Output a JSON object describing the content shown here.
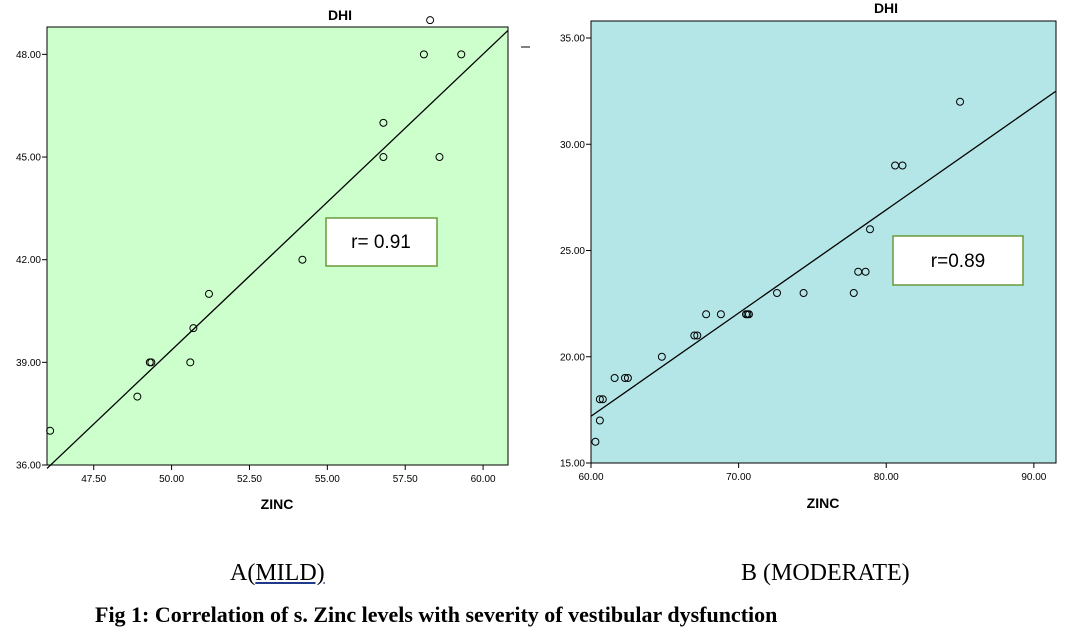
{
  "colors": {
    "panel_a_bg": "#ccffcc",
    "panel_b_bg": "#b4e6e8",
    "annotation_border": "#6a9a3a",
    "marker_stroke": "#000000"
  },
  "chart_data": [
    {
      "type": "scatter",
      "title": "DHI",
      "xlabel": "ZINC",
      "ylabel": "",
      "xlim": [
        46.0,
        60.8
      ],
      "ylim": [
        36.0,
        48.8
      ],
      "xticks": [
        "47.50",
        "50.00",
        "52.50",
        "55.00",
        "57.50",
        "60.00"
      ],
      "xtick_values": [
        47.5,
        50.0,
        52.5,
        55.0,
        57.5,
        60.0
      ],
      "yticks": [
        "36.00",
        "39.00",
        "42.00",
        "45.00",
        "48.00"
      ],
      "ytick_values": [
        36.0,
        39.0,
        42.0,
        45.0,
        48.0
      ],
      "grid": false,
      "marker": "open-circle",
      "points": [
        {
          "x": 46.1,
          "y": 37.0
        },
        {
          "x": 48.9,
          "y": 38.0
        },
        {
          "x": 49.3,
          "y": 39.0
        },
        {
          "x": 49.35,
          "y": 39.0
        },
        {
          "x": 50.6,
          "y": 39.0
        },
        {
          "x": 50.7,
          "y": 40.0
        },
        {
          "x": 51.2,
          "y": 41.0
        },
        {
          "x": 54.2,
          "y": 42.0
        },
        {
          "x": 56.8,
          "y": 45.0
        },
        {
          "x": 56.8,
          "y": 46.0
        },
        {
          "x": 58.1,
          "y": 48.0
        },
        {
          "x": 58.3,
          "y": 49.0
        },
        {
          "x": 58.6,
          "y": 45.0
        },
        {
          "x": 59.3,
          "y": 48.0
        }
      ],
      "fit_line": {
        "x": [
          46.0,
          60.8
        ],
        "y": [
          35.9,
          48.7
        ]
      },
      "annotation": "r= 0.91"
    },
    {
      "type": "scatter",
      "title": "DHI",
      "xlabel": "ZINC",
      "ylabel": "",
      "xlim": [
        60.0,
        91.5
      ],
      "ylim": [
        15.0,
        35.8
      ],
      "xticks": [
        "60.00",
        "70.00",
        "80.00",
        "90.00"
      ],
      "xtick_values": [
        60.0,
        70.0,
        80.0,
        90.0
      ],
      "yticks": [
        "15.00",
        "20.00",
        "25.00",
        "30.00",
        "35.00"
      ],
      "ytick_values": [
        15.0,
        20.0,
        25.0,
        30.0,
        35.0
      ],
      "grid": false,
      "marker": "open-circle",
      "points": [
        {
          "x": 60.3,
          "y": 16.0
        },
        {
          "x": 60.6,
          "y": 17.0
        },
        {
          "x": 60.6,
          "y": 18.0
        },
        {
          "x": 60.8,
          "y": 18.0
        },
        {
          "x": 61.6,
          "y": 19.0
        },
        {
          "x": 62.3,
          "y": 19.0
        },
        {
          "x": 62.5,
          "y": 19.0
        },
        {
          "x": 64.8,
          "y": 20.0
        },
        {
          "x": 67.0,
          "y": 21.0
        },
        {
          "x": 67.2,
          "y": 21.0
        },
        {
          "x": 67.8,
          "y": 22.0
        },
        {
          "x": 68.8,
          "y": 22.0
        },
        {
          "x": 70.5,
          "y": 22.0
        },
        {
          "x": 70.6,
          "y": 22.0
        },
        {
          "x": 70.7,
          "y": 22.0
        },
        {
          "x": 72.6,
          "y": 23.0
        },
        {
          "x": 74.4,
          "y": 23.0
        },
        {
          "x": 77.8,
          "y": 23.0
        },
        {
          "x": 78.1,
          "y": 24.0
        },
        {
          "x": 78.6,
          "y": 24.0
        },
        {
          "x": 78.9,
          "y": 26.0
        },
        {
          "x": 80.6,
          "y": 29.0
        },
        {
          "x": 81.1,
          "y": 29.0
        },
        {
          "x": 85.0,
          "y": 32.0
        }
      ],
      "fit_line": {
        "x": [
          60.0,
          91.5
        ],
        "y": [
          17.2,
          32.5
        ]
      },
      "annotation": "r=0.89"
    }
  ],
  "captions": {
    "panel_a_prefix": "A(",
    "panel_a_underlined": "MILD)",
    "panel_b": "B (MODERATE)",
    "figure": "Fig 1: Correlation of s. Zinc levels with severity of vestibular dysfunction"
  }
}
